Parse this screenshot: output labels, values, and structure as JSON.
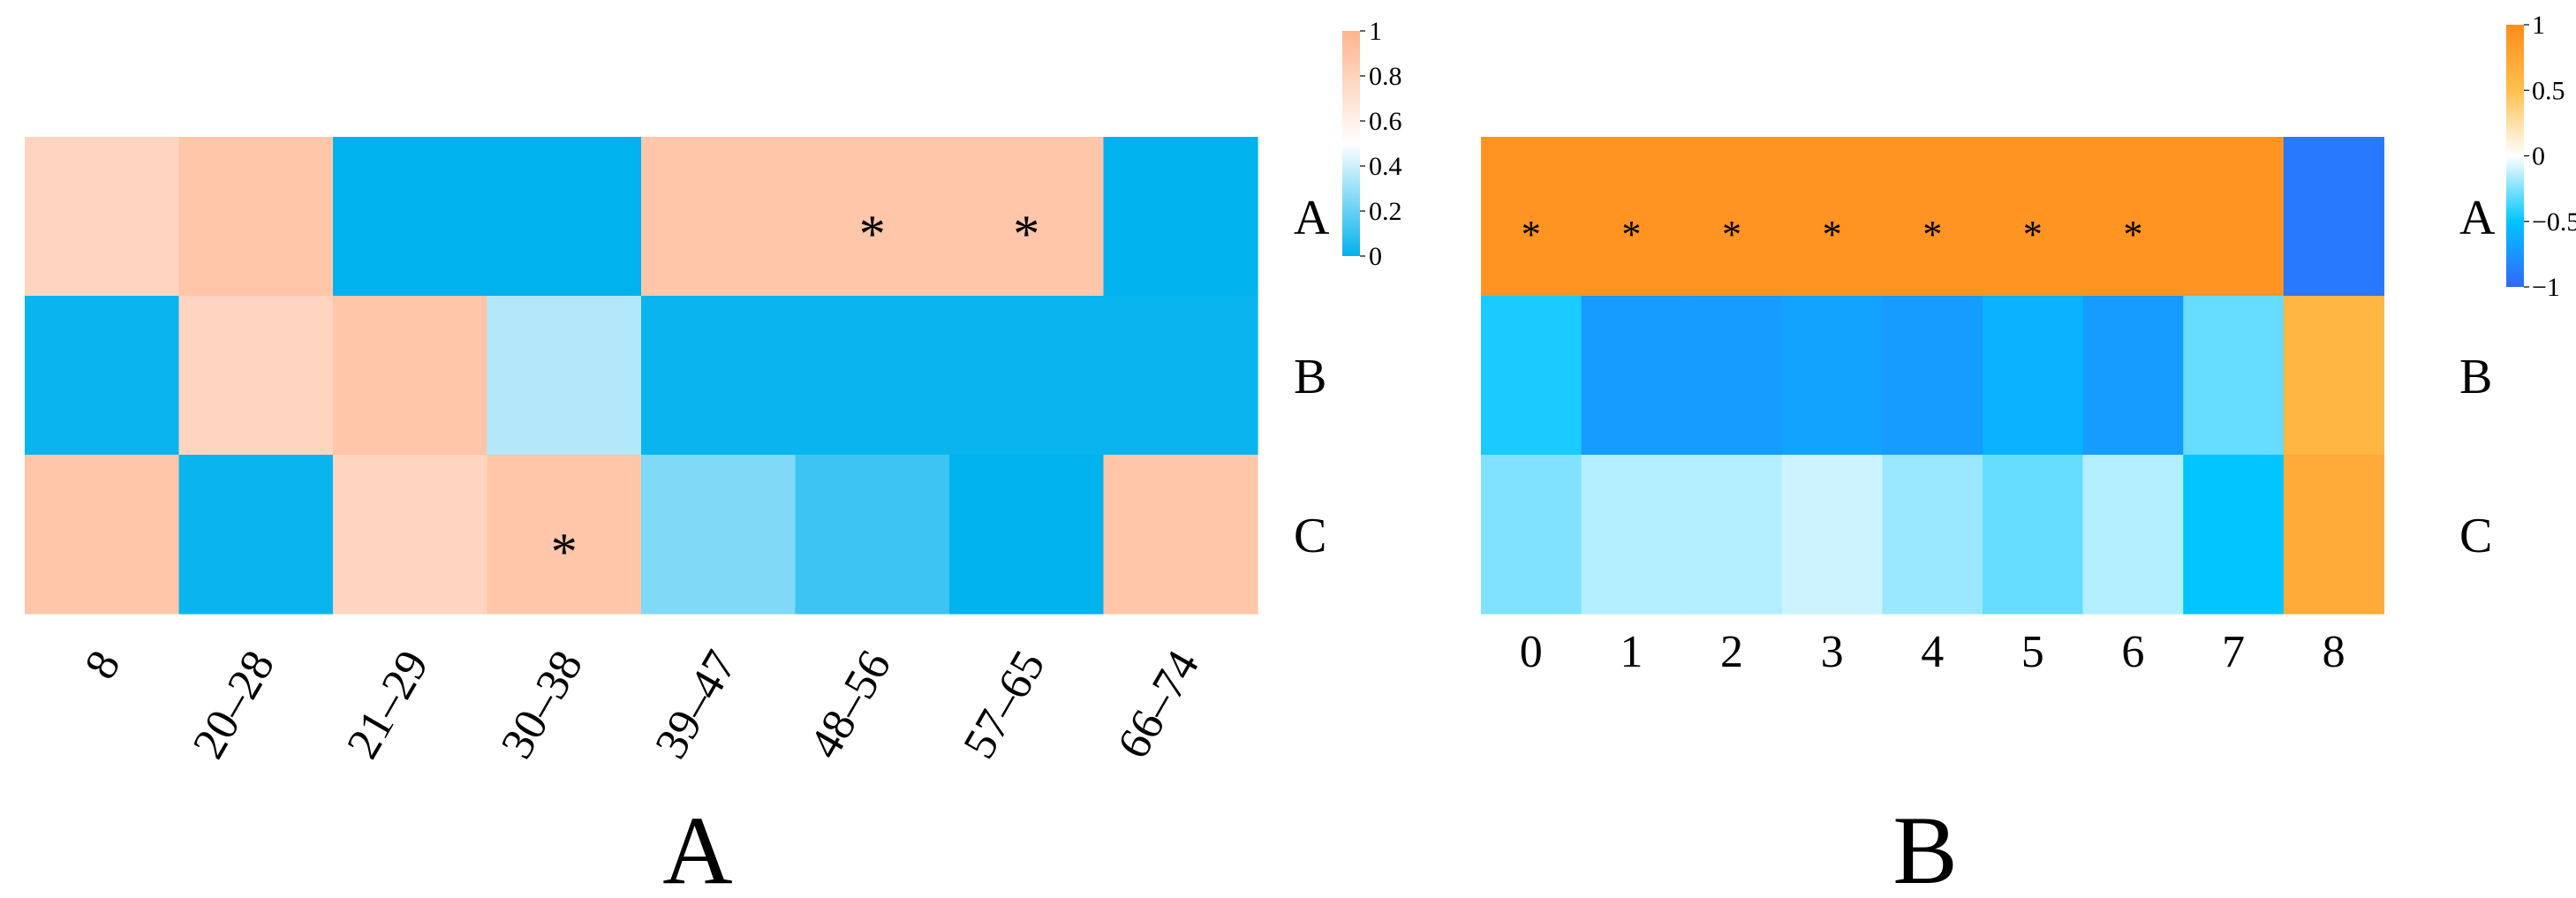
{
  "chart_data": [
    {
      "type": "heatmap",
      "panel_label": "A",
      "rows": [
        "A",
        "B",
        "C"
      ],
      "columns": [
        "8",
        "20–28",
        "21–29",
        "30–38",
        "39–47",
        "48–56",
        "57–65",
        "66–74"
      ],
      "values": [
        [
          0.78,
          0.88,
          0.0,
          0.0,
          0.88,
          0.88,
          0.88,
          0.0
        ],
        [
          0.02,
          0.78,
          0.88,
          0.35,
          0.02,
          0.02,
          0.02,
          0.02
        ],
        [
          0.88,
          0.02,
          0.78,
          0.88,
          0.25,
          0.12,
          0.0,
          0.88
        ]
      ],
      "significance": [
        [
          false,
          false,
          false,
          false,
          false,
          true,
          true,
          false
        ],
        [
          false,
          false,
          false,
          false,
          false,
          false,
          false,
          false
        ],
        [
          false,
          false,
          false,
          true,
          false,
          false,
          false,
          false
        ]
      ],
      "marker": "*",
      "colorbar": {
        "range": [
          0,
          1
        ],
        "ticks": [
          "0",
          "0.2",
          "0.4",
          "0.6",
          "0.8",
          "1"
        ],
        "colors": [
          "#00B2EE",
          "#FFFFFF",
          "#FFB48E"
        ]
      }
    },
    {
      "type": "heatmap",
      "panel_label": "B",
      "rows": [
        "A",
        "B",
        "C"
      ],
      "columns": [
        "0",
        "1",
        "2",
        "3",
        "4",
        "5",
        "6",
        "7",
        "8"
      ],
      "values": [
        [
          0.92,
          0.92,
          0.92,
          0.92,
          0.92,
          0.92,
          0.92,
          0.92,
          -0.9
        ],
        [
          -0.45,
          -0.72,
          -0.72,
          -0.68,
          -0.72,
          -0.6,
          -0.72,
          -0.3,
          0.6
        ],
        [
          -0.25,
          -0.15,
          -0.15,
          -0.1,
          -0.2,
          -0.3,
          -0.15,
          -0.5,
          0.7
        ]
      ],
      "significance": [
        [
          true,
          true,
          true,
          true,
          true,
          true,
          true,
          false,
          false
        ],
        [
          false,
          false,
          false,
          false,
          false,
          false,
          false,
          false,
          false
        ],
        [
          false,
          false,
          false,
          false,
          false,
          false,
          false,
          false,
          false
        ]
      ],
      "marker": "*",
      "colorbar": {
        "range": [
          -1,
          1
        ],
        "ticks": [
          "−1",
          "−0.5",
          "0",
          "0.5",
          "1"
        ],
        "colors": [
          "#3366FF",
          "#00C5FF",
          "#FFFFFF",
          "#FFC04D",
          "#FF8C1A"
        ]
      }
    }
  ]
}
